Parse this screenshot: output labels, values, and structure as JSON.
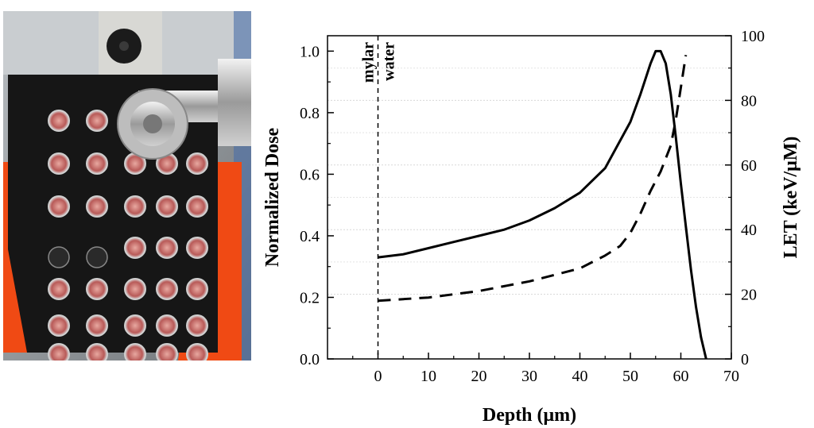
{
  "photo": {
    "description_icon": "sample-holder-photo"
  },
  "chart_data": {
    "type": "line",
    "xlabel": "Depth (μm)",
    "ylabel": "Normalized Dose",
    "y2label": "LET (keV/μM)",
    "xlim": [
      -10,
      70
    ],
    "ylim": [
      0,
      1.05
    ],
    "y2lim": [
      0,
      100
    ],
    "xticks": [
      0,
      10,
      20,
      30,
      40,
      50,
      60,
      70
    ],
    "yticks": [
      0.0,
      0.2,
      0.4,
      0.6,
      0.8,
      1.0
    ],
    "y2ticks": [
      0,
      20,
      40,
      60,
      80,
      100
    ],
    "xtick_labels": [
      "0",
      "10",
      "20",
      "30",
      "40",
      "50",
      "60",
      "70"
    ],
    "ytick_labels": [
      "0.0",
      "0.2",
      "0.4",
      "0.6",
      "0.8",
      "1.0"
    ],
    "y2tick_labels": [
      "0",
      "20",
      "40",
      "60",
      "80",
      "100"
    ],
    "annotations": {
      "left": "mylar",
      "right": "water",
      "boundary_x": 0
    },
    "series": [
      {
        "name": "Normalized Dose",
        "axis": "left",
        "style": "solid",
        "x": [
          0,
          5,
          10,
          15,
          20,
          25,
          30,
          35,
          40,
          45,
          50,
          52,
          54,
          55,
          56,
          57,
          58,
          59,
          60,
          61,
          62,
          63,
          64,
          65
        ],
        "values": [
          0.33,
          0.34,
          0.36,
          0.38,
          0.4,
          0.42,
          0.45,
          0.49,
          0.54,
          0.62,
          0.77,
          0.86,
          0.96,
          1.0,
          1.0,
          0.96,
          0.86,
          0.72,
          0.57,
          0.43,
          0.29,
          0.17,
          0.07,
          0.0
        ]
      },
      {
        "name": "LET",
        "axis": "right",
        "style": "dashed",
        "x": [
          0,
          5,
          10,
          15,
          20,
          25,
          30,
          35,
          40,
          45,
          48,
          50,
          52,
          54,
          56,
          58,
          59,
          60,
          61
        ],
        "values": [
          18,
          18.5,
          19,
          20,
          21,
          22.5,
          24,
          26,
          28,
          32,
          35,
          39,
          45,
          52,
          58,
          66,
          74,
          84,
          94
        ]
      }
    ]
  }
}
